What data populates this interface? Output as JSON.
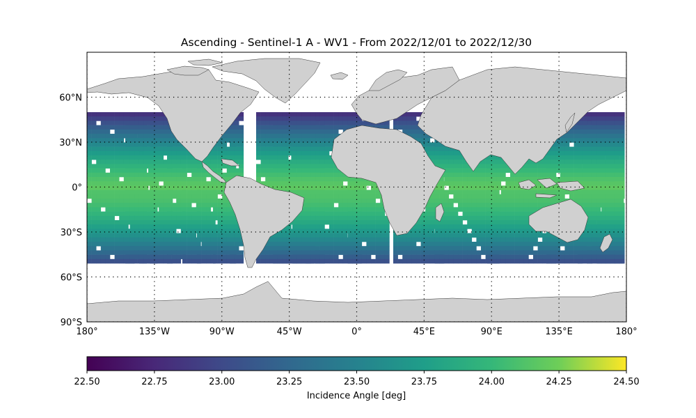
{
  "title": "Ascending - Sentinel-1 A - WV1 - From 2022/12/01 to 2022/12/30",
  "map": {
    "lon_range": [
      -180,
      180
    ],
    "lat_range": [
      -90,
      90
    ],
    "lat_ticks": [
      {
        "value": 60,
        "label": "60°N"
      },
      {
        "value": 30,
        "label": "30°N"
      },
      {
        "value": 0,
        "label": "0°"
      },
      {
        "value": -30,
        "label": "30°S"
      },
      {
        "value": -60,
        "label": "60°S"
      },
      {
        "value": -90,
        "label": "90°S"
      }
    ],
    "lon_ticks": [
      {
        "value": -180,
        "label": "180°"
      },
      {
        "value": -135,
        "label": "135°W"
      },
      {
        "value": -90,
        "label": "90°W"
      },
      {
        "value": -45,
        "label": "45°W"
      },
      {
        "value": 0,
        "label": "0°"
      },
      {
        "value": 45,
        "label": "45°E"
      },
      {
        "value": 90,
        "label": "90°E"
      },
      {
        "value": 135,
        "label": "135°E"
      },
      {
        "value": 180,
        "label": "180°"
      }
    ],
    "gridlines": "dotted",
    "land_color": "#d0d0d0",
    "coverage_lat_range": [
      -50,
      50
    ]
  },
  "colorbar": {
    "label": "Incidence Angle [deg]",
    "vmin": 22.5,
    "vmax": 24.5,
    "colormap": "viridis",
    "ticks": [
      "22.50",
      "22.75",
      "23.00",
      "23.25",
      "23.50",
      "23.75",
      "24.00",
      "24.25",
      "24.50"
    ]
  }
}
